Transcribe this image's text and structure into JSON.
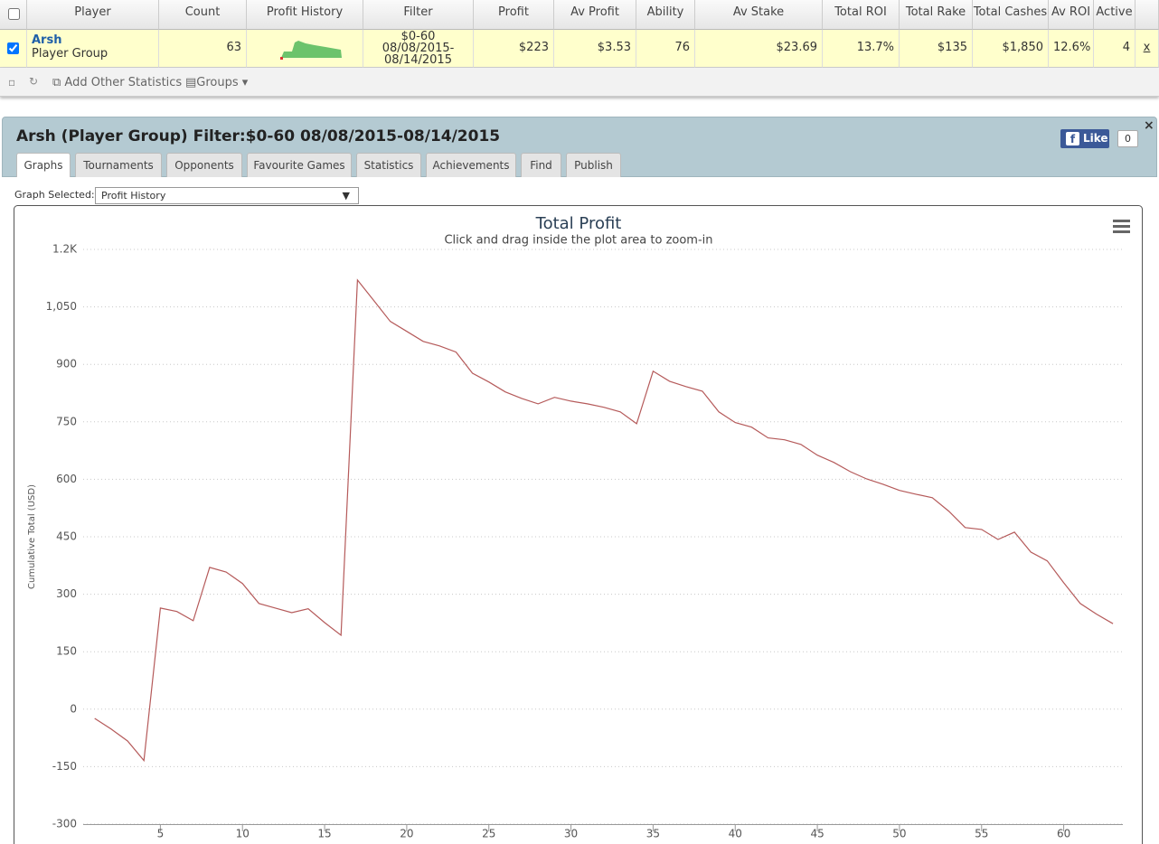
{
  "table": {
    "header": [
      "Player",
      "Count",
      "Profit History",
      "Filter",
      "Profit",
      "Av Profit",
      "Ability",
      "Av Stake",
      "Total ROI",
      "Total Rake",
      "Total Cashes",
      "Av ROI",
      "Active"
    ],
    "row": {
      "player": "Arsh",
      "group": "Player Group",
      "filter": [
        "$0-60",
        "08/08/2015-",
        "08/14/2015"
      ],
      "cells": [
        "63",
        "$223",
        "$3.53",
        "76",
        "$23.69",
        "13.7%",
        "$135",
        "$1,850",
        "12.6%",
        "4"
      ],
      "remove": "x"
    }
  },
  "toolbar": [
    "Add Other Statistics",
    "Groups"
  ],
  "panel": {
    "title": "Arsh (Player Group) Filter:$0-60 08/08/2015-08/14/2015",
    "like": "Like",
    "like_count": "0",
    "tabs": [
      "Graphs",
      "Tournaments",
      "Opponents",
      "Favourite Games",
      "Statistics",
      "Achievements",
      "Find",
      "Publish"
    ],
    "graph_label": "Graph Selected:",
    "graph_selected": "Profit History"
  },
  "chart_data": {
    "type": "line",
    "title": "Total Profit",
    "subtitle": "Click and drag inside the plot area to zoom-in",
    "y_label": "Cumulative Total (USD)",
    "color": "#b55a5a",
    "x": [
      1,
      2,
      3,
      4,
      5,
      6,
      7,
      8,
      9,
      10,
      11,
      12,
      13,
      14,
      15,
      16,
      17,
      18,
      19,
      20,
      21,
      22,
      23,
      24,
      25,
      26,
      27,
      28,
      29,
      30,
      31,
      32,
      33,
      34,
      35,
      36,
      37,
      38,
      39,
      40,
      41,
      42,
      43,
      44,
      45,
      46,
      47,
      48,
      49,
      50,
      51,
      52,
      53,
      54,
      55,
      56,
      57,
      58,
      59,
      60,
      61,
      62,
      63
    ],
    "values": [
      -24,
      -52,
      -83,
      -134,
      264,
      255,
      231,
      370,
      358,
      328,
      276,
      264,
      252,
      262,
      226,
      193,
      1120,
      1066,
      1012,
      986,
      960,
      948,
      932,
      877,
      854,
      828,
      811,
      797,
      814,
      804,
      797,
      788,
      776,
      745,
      882,
      856,
      842,
      830,
      776,
      748,
      736,
      708,
      703,
      691,
      663,
      644,
      620,
      601,
      587,
      571,
      561,
      552,
      517,
      474,
      469,
      443,
      462,
      410,
      387,
      330,
      276,
      248,
      223
    ],
    "xlim": [
      0.3,
      63.6
    ],
    "ylim": [
      -300,
      1200
    ],
    "xticks": [
      5,
      10,
      15,
      20,
      25,
      30,
      35,
      40,
      45,
      50,
      55,
      60
    ],
    "yticks": [
      -300,
      -150,
      0,
      150,
      300,
      450,
      600,
      750,
      900,
      {
        "value": 1050,
        "label": "1,050"
      },
      {
        "value": 1200,
        "label": "1.2K"
      }
    ],
    "grid": true
  }
}
